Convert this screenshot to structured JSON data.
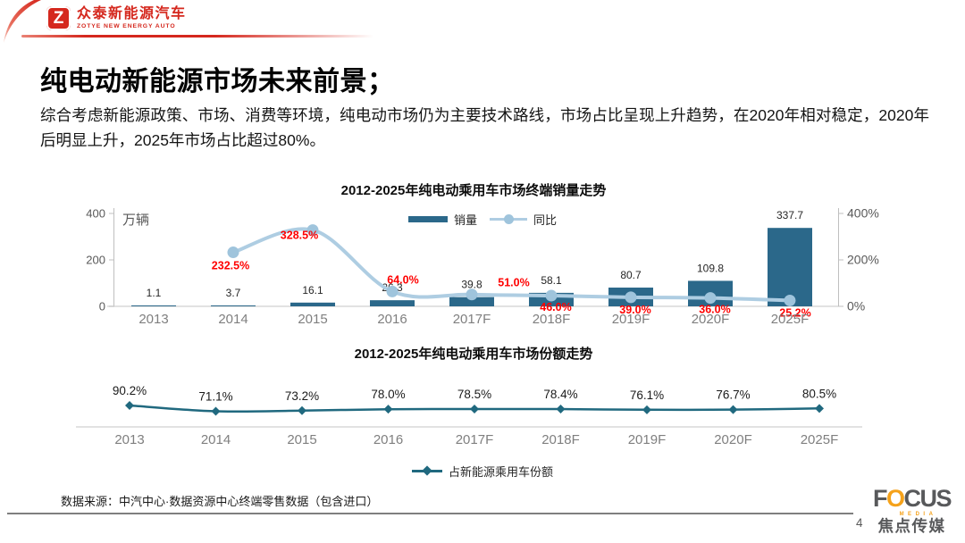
{
  "header": {
    "logo_cn": "众泰新能源汽车",
    "logo_en": "ZOTYE NEW ENERGY AUTO",
    "logo_mark": "Z"
  },
  "title": "纯电动新能源市场未来前景；",
  "intro": "综合考虑新能源政策、市场、消费等环境，纯电动市场仍为主要技术路线，市场占比呈现上升趋势，在2020年相对稳定，2020年后明显上升，2025年市场占比超过80%。",
  "colors": {
    "brand_red": "#d5281e",
    "bar_teal": "#2b688a",
    "line_light_blue": "#aecde2",
    "marker_blue": "#9fc4dc",
    "label_red": "#ff0000",
    "share_line_teal": "#20697f",
    "focus_orange": "#f5a21b",
    "logo_gray": "#58595b",
    "axis_gray": "#bfbfbf",
    "text_gray": "#7f7f7f"
  },
  "chart_data": [
    {
      "type": "bar+line",
      "title": "2012-2025年纯电动乘用车市场终端销量走势",
      "categories": [
        "2013",
        "2014",
        "2015",
        "2016",
        "2017F",
        "2018F",
        "2019F",
        "2020F",
        "2025F"
      ],
      "series": [
        {
          "name": "销量",
          "type": "bar",
          "axis": "left",
          "unit": "万辆",
          "values": [
            1.1,
            3.7,
            16.1,
            26.3,
            39.8,
            58.1,
            80.7,
            109.8,
            337.7
          ],
          "color": "#2b688a"
        },
        {
          "name": "同比",
          "type": "line",
          "axis": "right",
          "unit": "%",
          "values": [
            null,
            232.5,
            328.5,
            64.0,
            51.0,
            46.0,
            39.0,
            36.0,
            25.2
          ],
          "color": "#aecde2",
          "marker_color": "#9fc4dc",
          "label_color": "#ff0000"
        }
      ],
      "left_axis": {
        "unit_label": "万辆",
        "ticks": [
          "0",
          "200",
          "400"
        ],
        "range": [
          0,
          400
        ]
      },
      "right_axis": {
        "ticks": [
          "0%",
          "200%",
          "400%"
        ],
        "range": [
          0,
          400
        ]
      },
      "grid": false,
      "legend_position": "top"
    },
    {
      "type": "line",
      "title": "2012-2025年纯电动乘用车市场份额走势",
      "categories": [
        "2013",
        "2014",
        "2015",
        "2016",
        "2017F",
        "2018F",
        "2019F",
        "2020F",
        "2025F"
      ],
      "series": [
        {
          "name": "占新能源乘用车份额",
          "type": "line",
          "unit": "%",
          "values": [
            90.2,
            71.1,
            73.2,
            78.0,
            78.5,
            78.4,
            76.1,
            76.7,
            80.5
          ],
          "color": "#20697f"
        }
      ],
      "grid": false,
      "legend_position": "bottom"
    }
  ],
  "footer": {
    "source": "数据来源：中汽中心·数据资源中心终端零售数据（包含进口）",
    "page": "4",
    "brand": {
      "focus_f": "F",
      "focus_o": "O",
      "focus_cus": "CUS",
      "media": "MEDIA",
      "cn": "焦点传媒"
    }
  }
}
